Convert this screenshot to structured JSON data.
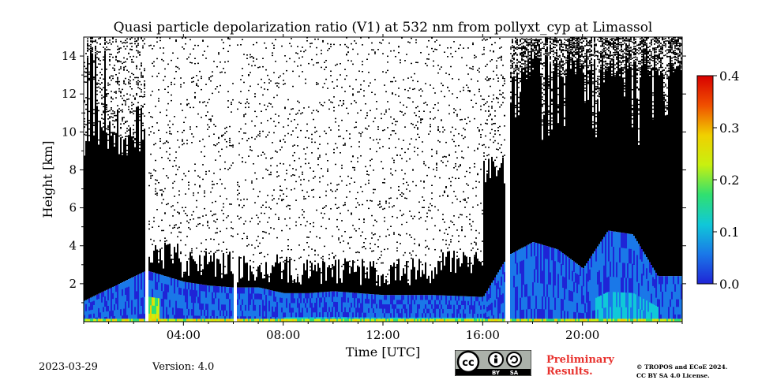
{
  "chart_data": {
    "type": "heatmap",
    "title": "Quasi particle depolarization ratio (V1) at 532 nm from pollyxt_cyp at Limassol",
    "xlabel": "Time [UTC]",
    "ylabel": "Height [km]",
    "x_ticks": [
      "04:00",
      "08:00",
      "12:00",
      "16:00",
      "20:00"
    ],
    "x_tick_hours": [
      4,
      8,
      12,
      16,
      20
    ],
    "xlim_hours": [
      0,
      24
    ],
    "y_ticks": [
      "2",
      "4",
      "6",
      "8",
      "10",
      "12",
      "14"
    ],
    "y_tick_values": [
      2,
      4,
      6,
      8,
      10,
      12,
      14
    ],
    "ylim_km": [
      0,
      15
    ],
    "colorbar": {
      "ticks": [
        "0.0",
        "0.1",
        "0.2",
        "0.3",
        "0.4"
      ],
      "tick_values": [
        0,
        0.1,
        0.2,
        0.3,
        0.4
      ],
      "range": [
        0,
        0.4
      ],
      "colormap": [
        "#1f24d6",
        "#1a78e8",
        "#10c8d8",
        "#30e070",
        "#c8f010",
        "#f0d000",
        "#f05000",
        "#d80000"
      ]
    },
    "data_gaps_hours": [
      2.5,
      6.05,
      16.95
    ],
    "boundary_layer_top_km": [
      [
        0,
        1.1
      ],
      [
        2.5,
        2.7
      ],
      [
        3.0,
        2.5
      ],
      [
        4.0,
        2.1
      ],
      [
        5.0,
        1.9
      ],
      [
        6.0,
        1.8
      ],
      [
        7.0,
        1.8
      ],
      [
        8.0,
        1.5
      ],
      [
        9.0,
        1.5
      ],
      [
        10.0,
        1.6
      ],
      [
        12.0,
        1.4
      ],
      [
        14.0,
        1.4
      ],
      [
        16.0,
        1.3
      ],
      [
        17.0,
        3.5
      ],
      [
        18.0,
        4.2
      ],
      [
        19.0,
        3.8
      ],
      [
        20.0,
        2.8
      ],
      [
        21.0,
        4.8
      ],
      [
        22.0,
        4.6
      ],
      [
        23.0,
        2.4
      ],
      [
        24.0,
        2.4
      ]
    ]
  },
  "footer": {
    "date": "2023-03-29",
    "version": "Version: 4.0",
    "license_badge": "cc-by-sa-badge",
    "by": "BY",
    "sa": "SA",
    "preliminary": "Preliminary\nResults.",
    "copyright_line1": "© TROPOS and ECoE 2024.",
    "copyright_line2": "CC BY SA 4.0 License."
  }
}
